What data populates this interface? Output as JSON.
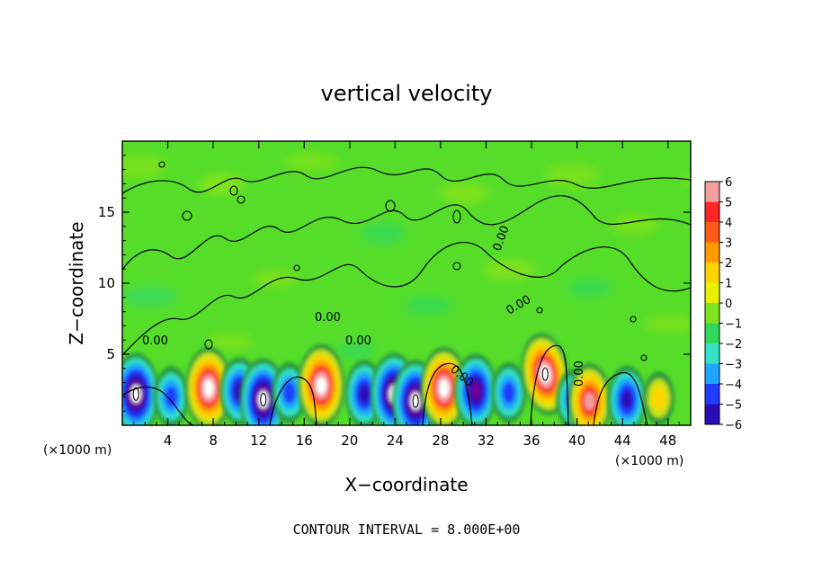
{
  "chart_data": {
    "type": "heatmap",
    "title": "vertical velocity",
    "xlabel": "X−coordinate",
    "ylabel": "Z−coordinate",
    "x_unit_label": "(×1000 m)",
    "x_unit_label_right": "(×1000 m)",
    "footer": "CONTOUR INTERVAL = 8.000E+00",
    "xlim": [
      0,
      50
    ],
    "ylim": [
      0,
      20
    ],
    "x_ticks": [
      4,
      8,
      12,
      16,
      20,
      24,
      28,
      32,
      36,
      40,
      44,
      48
    ],
    "y_ticks": [
      5,
      10,
      15
    ],
    "x_tick_labels": [
      "4",
      "8",
      "12",
      "16",
      "20",
      "24",
      "28",
      "32",
      "36",
      "40",
      "44",
      "48"
    ],
    "y_tick_labels": [
      "5",
      "10",
      "15"
    ],
    "colorbar": {
      "levels": [
        6,
        5,
        4,
        3,
        2,
        1,
        0,
        -1,
        -2,
        -3,
        -4,
        -5,
        -6
      ],
      "labels": [
        "6",
        "5",
        "4",
        "3",
        "2",
        "1",
        "0",
        "−1",
        "−2",
        "−3",
        "−4",
        "−5",
        "−6"
      ],
      "colors": [
        "#f29f9f",
        "#ff2626",
        "#ff5a1a",
        "#ff9b00",
        "#ffd400",
        "#e6f000",
        "#7ee21c",
        "#2ed85a",
        "#33e0c2",
        "#1fa6ff",
        "#1f3cff",
        "#2a0db8",
        "#6c0098"
      ]
    },
    "contour_labels": [
      "0.00",
      "0.00",
      "0.00",
      "0.00",
      "0.00",
      "0.00",
      "0.00"
    ],
    "background_color": "#55dd2a",
    "features": [
      {
        "x": 1.2,
        "z": 2.2,
        "w": -6
      },
      {
        "x": 4.3,
        "z": 2.0,
        "w": -3
      },
      {
        "x": 7.6,
        "z": 2.6,
        "w": 6
      },
      {
        "x": 10.3,
        "z": 2.4,
        "w": -4
      },
      {
        "x": 12.4,
        "z": 1.8,
        "w": -6
      },
      {
        "x": 14.7,
        "z": 2.3,
        "w": -3
      },
      {
        "x": 17.5,
        "z": 2.8,
        "w": 6
      },
      {
        "x": 21.3,
        "z": 2.2,
        "w": -4
      },
      {
        "x": 23.9,
        "z": 2.2,
        "w": -6
      },
      {
        "x": 25.8,
        "z": 1.7,
        "w": -6
      },
      {
        "x": 28.3,
        "z": 2.6,
        "w": 6
      },
      {
        "x": 31.1,
        "z": 2.4,
        "w": -5
      },
      {
        "x": 34.0,
        "z": 2.3,
        "w": -3
      },
      {
        "x": 37.2,
        "z": 3.6,
        "w": 6
      },
      {
        "x": 39.7,
        "z": 1.8,
        "w": -3
      },
      {
        "x": 41.1,
        "z": 1.7,
        "w": 5
      },
      {
        "x": 44.4,
        "z": 1.8,
        "w": -4
      },
      {
        "x": 47.2,
        "z": 1.9,
        "w": 2
      }
    ]
  }
}
